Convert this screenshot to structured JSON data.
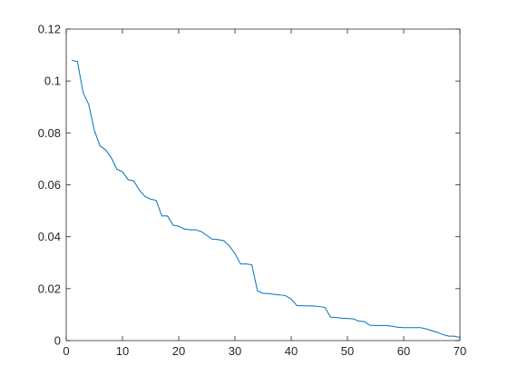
{
  "chart_data": {
    "type": "line",
    "title": "",
    "xlabel": "",
    "ylabel": "",
    "xlim": [
      0,
      70
    ],
    "ylim": [
      0,
      0.12
    ],
    "grid": false,
    "line_color": "#0072BD",
    "axis_color": "#262626",
    "xticks": [
      0,
      10,
      20,
      30,
      40,
      50,
      60,
      70
    ],
    "xtick_labels": [
      "0",
      "10",
      "20",
      "30",
      "40",
      "50",
      "60",
      "70"
    ],
    "yticks": [
      0,
      0.02,
      0.04,
      0.06,
      0.08,
      0.1,
      0.12
    ],
    "ytick_labels": [
      "0",
      "0.02",
      "0.04",
      "0.06",
      "0.08",
      "0.1",
      "0.12"
    ],
    "series": [
      {
        "x": [
          1,
          2,
          3,
          4,
          5,
          6,
          7,
          8,
          9,
          10,
          11,
          12,
          13,
          14,
          15,
          16,
          17,
          18,
          19,
          20,
          21,
          22,
          23,
          24,
          25,
          26,
          27,
          28,
          29,
          30,
          31,
          32,
          33,
          34,
          35,
          36,
          37,
          38,
          39,
          40,
          41,
          42,
          43,
          44,
          45,
          46,
          47,
          48,
          49,
          50,
          51,
          52,
          53,
          54,
          55,
          56,
          57,
          58,
          59,
          60,
          61,
          62,
          63,
          64,
          65,
          66,
          67,
          68,
          69,
          70
        ],
        "values": [
          0.108,
          0.1075,
          0.0955,
          0.091,
          0.081,
          0.075,
          0.0735,
          0.0705,
          0.066,
          0.065,
          0.062,
          0.0615,
          0.058,
          0.0555,
          0.0545,
          0.054,
          0.048,
          0.048,
          0.0445,
          0.044,
          0.043,
          0.0427,
          0.0427,
          0.042,
          0.0405,
          0.039,
          0.0389,
          0.0385,
          0.0365,
          0.0335,
          0.0295,
          0.0295,
          0.0292,
          0.0192,
          0.0182,
          0.0181,
          0.0178,
          0.0176,
          0.0173,
          0.016,
          0.0135,
          0.0134,
          0.0134,
          0.0133,
          0.0131,
          0.0128,
          0.009,
          0.0089,
          0.0086,
          0.0085,
          0.0084,
          0.0075,
          0.0073,
          0.0059,
          0.0058,
          0.0058,
          0.0058,
          0.0055,
          0.0051,
          0.005,
          0.005,
          0.005,
          0.005,
          0.0045,
          0.0038,
          0.0032,
          0.0023,
          0.0017,
          0.0017,
          0.0012
        ]
      }
    ]
  }
}
